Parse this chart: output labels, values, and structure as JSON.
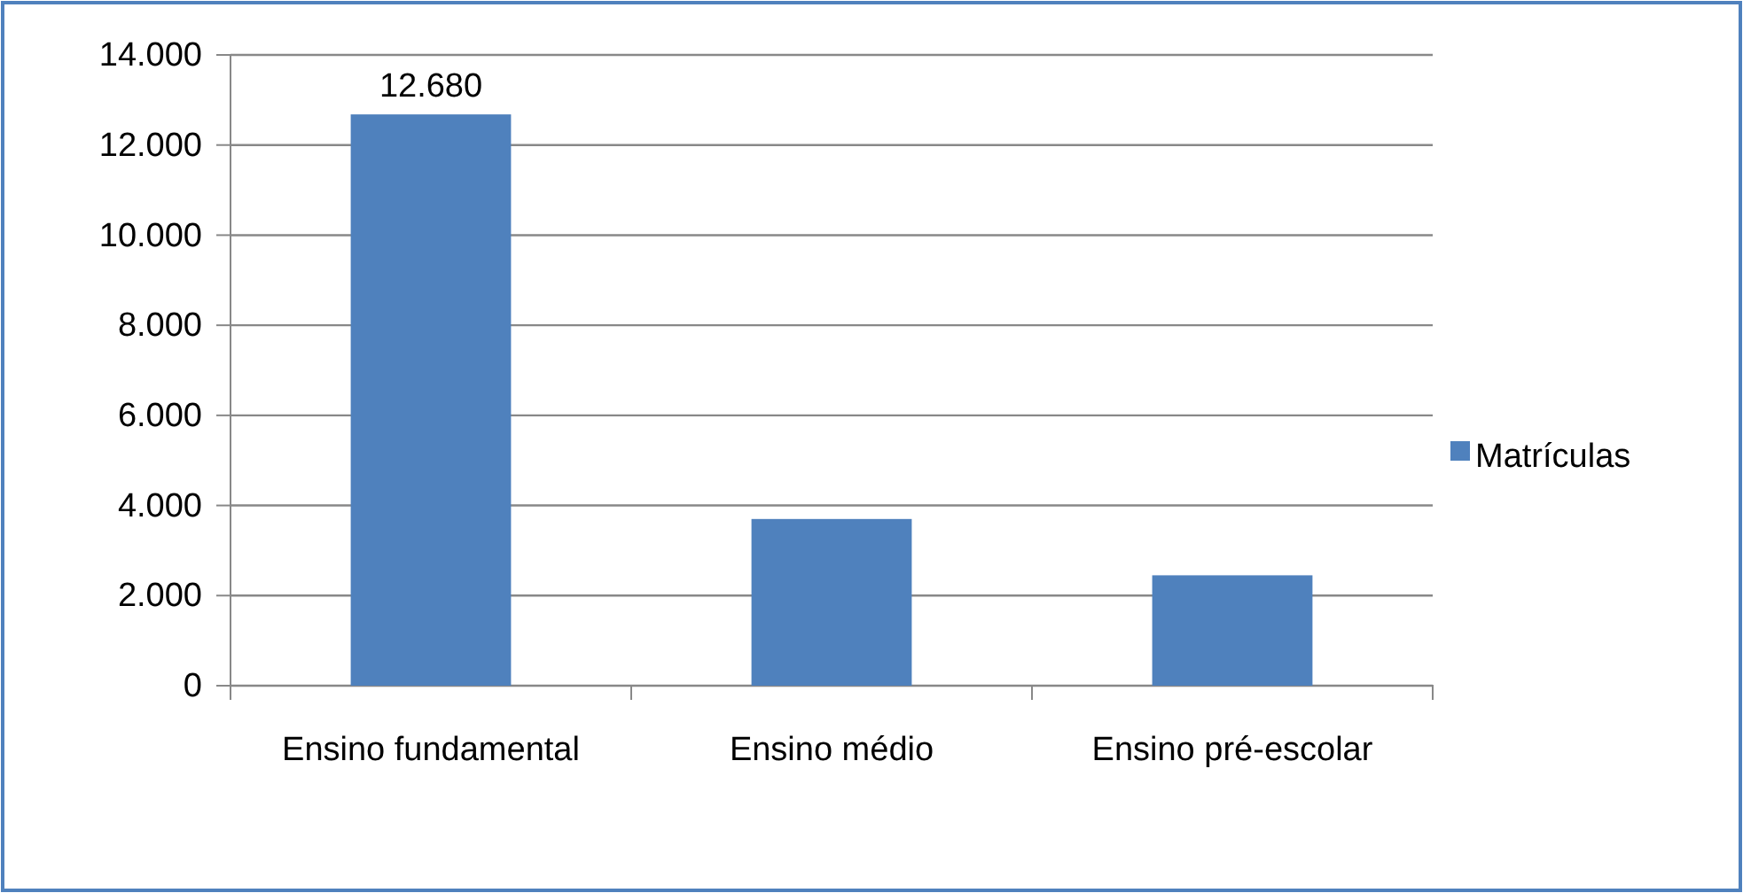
{
  "chart_data": {
    "type": "bar",
    "categories": [
      "Ensino fundamental",
      "Ensino médio",
      "Ensino pré-escolar"
    ],
    "series": [
      {
        "name": "Matrículas",
        "color": "#4f81bd",
        "values": [
          12680,
          3700,
          2450
        ],
        "value_labels": [
          "12.680",
          null,
          null
        ]
      }
    ],
    "ylim": [
      0,
      14000
    ],
    "yticks": [
      {
        "value": 0,
        "label": "0"
      },
      {
        "value": 2000,
        "label": "2.000"
      },
      {
        "value": 4000,
        "label": "4.000"
      },
      {
        "value": 6000,
        "label": "6.000"
      },
      {
        "value": 8000,
        "label": "8.000"
      },
      {
        "value": 10000,
        "label": "10.000"
      },
      {
        "value": 12000,
        "label": "12.000"
      },
      {
        "value": 14000,
        "label": "14.000"
      }
    ],
    "grid": "y",
    "legend": "right"
  }
}
